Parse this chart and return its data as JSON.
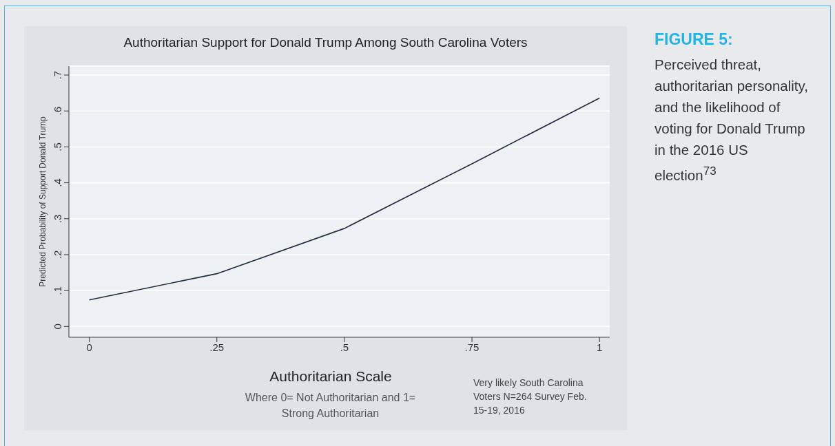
{
  "chart_data": {
    "type": "line",
    "title": "Authoritarian Support for Donald Trump Among South Carolina Voters",
    "xlabel": "Authoritarian Scale",
    "ylabel": "Predicted Probability of Support Donald Trump",
    "x": [
      0,
      0.25,
      0.5,
      0.75,
      1
    ],
    "series": [
      {
        "color": "#1f2d3d",
        "values": [
          0.074,
          0.147,
          0.273,
          0.453,
          0.636
        ]
      }
    ],
    "xlim": [
      -0.04,
      1.02
    ],
    "xticks": [
      0,
      {
        "value": 0.25,
        "label": ".25"
      },
      {
        "value": 0.5,
        "label": ".5"
      },
      {
        "value": 0.75,
        "label": ".75"
      },
      1
    ],
    "ylim": [
      -0.03,
      0.725
    ],
    "yticks": [
      0,
      {
        "value": 0.1,
        "label": ".1"
      },
      {
        "value": 0.2,
        "label": ".2"
      },
      {
        "value": 0.3,
        "label": ".3"
      },
      {
        "value": 0.4,
        "label": ".4"
      },
      {
        "value": 0.5,
        "label": ".5"
      },
      {
        "value": 0.6,
        "label": ".6"
      },
      {
        "value": 0.7,
        "label": ".7"
      }
    ],
    "grid": "y",
    "marker": "none",
    "line_style": "solid",
    "legend": false,
    "annotations": [
      "FIGURE 5:",
      "Perceived threat, authoritarian personality, and the likelihood of voting for Donald Trump in the 2016 US election$^{73}$",
      "Where 0= Not Authoritarian and 1= Strong Authoritarian",
      "Very likely South Carolina Voters N=264 Survey Feb. 15-19, 2016"
    ]
  }
}
